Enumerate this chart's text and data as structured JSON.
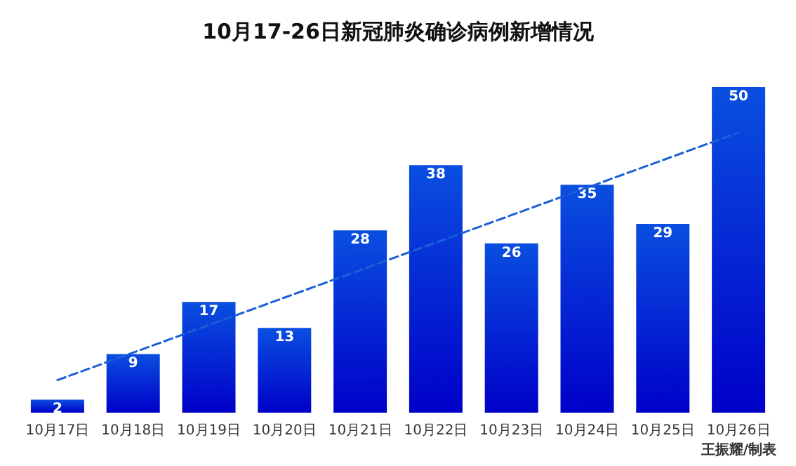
{
  "chart_data": {
    "type": "bar",
    "title": "10月17-26日新冠肺炎确诊病例新增情况",
    "categories": [
      "10月17日",
      "10月18日",
      "10月19日",
      "10月20日",
      "10月21日",
      "10月22日",
      "10月23日",
      "10月24日",
      "10月25日",
      "10月26日"
    ],
    "series": [
      {
        "color": "#0a4fe0",
        "values": [
          2,
          9,
          17,
          13,
          28,
          38,
          26,
          35,
          29,
          50
        ],
        "value_labels": [
          "2",
          "9",
          "17",
          "13",
          "28",
          "38",
          "26",
          "35",
          "29",
          "50"
        ]
      },
      {
        "type": "line",
        "color": "#1a5fd8",
        "line_style": "dashed",
        "marker": "none",
        "x": [
          "10月17日",
          "10月26日"
        ],
        "values": [
          5,
          43
        ]
      }
    ],
    "annotations": [
      "王振耀/制表"
    ]
  }
}
